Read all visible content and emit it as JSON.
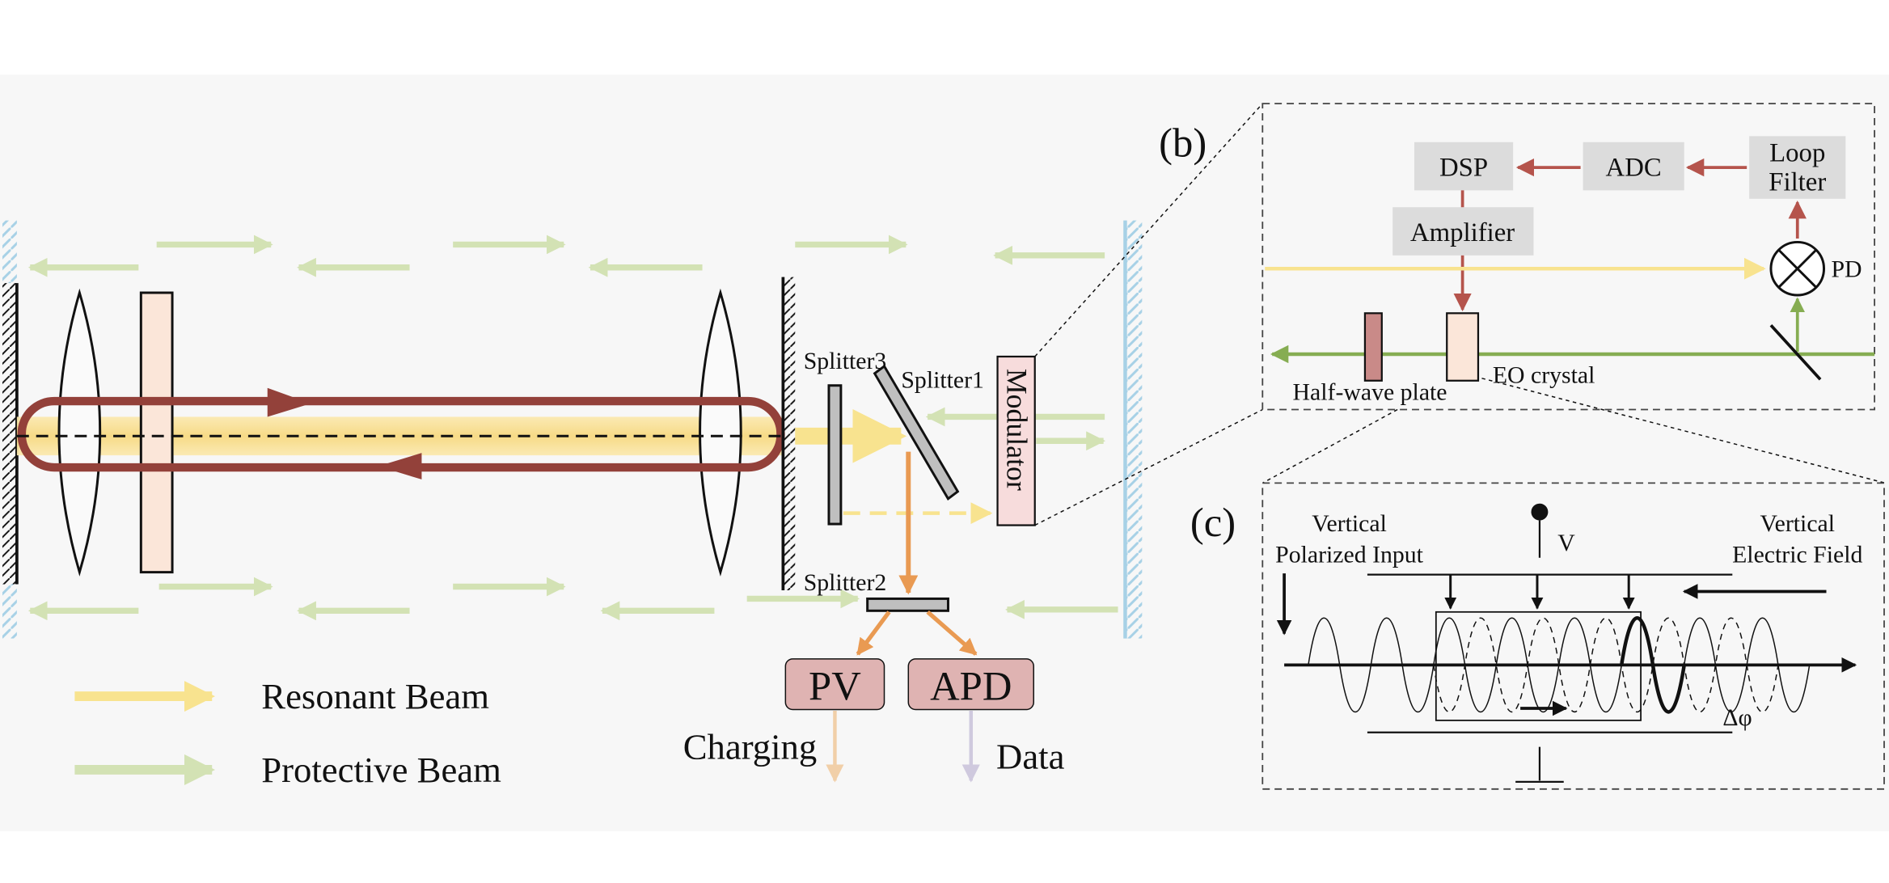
{
  "colors": {
    "resonant_beam": "#f8e38f",
    "protective_beam": "#d3e2b4",
    "cavity_loop": "#93413a",
    "signal_arrow": "#b5544c",
    "feedback_green": "#86ad52",
    "pv_apd_fill": "#dfb3b2",
    "modulator_fill": "#f7dcdc",
    "crystal_fill": "#fbe6d9",
    "lens_plate_fill": "#fbe6d9",
    "box_fill": "#dcdcdc",
    "mirror_hatch_right": "#a7d1e6",
    "charging_arrow": "#f1cfa8",
    "data_arrow": "#cfc9de",
    "orange_beam": "#e99a52"
  },
  "labels": {
    "splitter1": "Splitter1",
    "splitter2": "Splitter2",
    "splitter3": "Splitter3",
    "modulator": "Modulator",
    "pv": "PV",
    "apd": "APD",
    "charging": "Charging",
    "data": "Data"
  },
  "legend": {
    "items": [
      {
        "label": "Resonant Beam",
        "color": "#f8e38f"
      },
      {
        "label": "Protective Beam",
        "color": "#d3e2b4"
      }
    ]
  },
  "panel_b": {
    "tag": "(b)",
    "dsp": "DSP",
    "adc": "ADC",
    "loop_filter_line1": "Loop",
    "loop_filter_line2": "Filter",
    "amplifier": "Amplifier",
    "pd": "PD",
    "half_wave_plate": "Half-wave plate",
    "eo_crystal": "EO crystal"
  },
  "panel_c": {
    "tag": "(c)",
    "left_line1": "Vertical",
    "left_line2": "Polarized Input",
    "right_line1": "Vertical",
    "right_line2": "Electric Field",
    "voltage": "V",
    "phase": "Δφ"
  }
}
